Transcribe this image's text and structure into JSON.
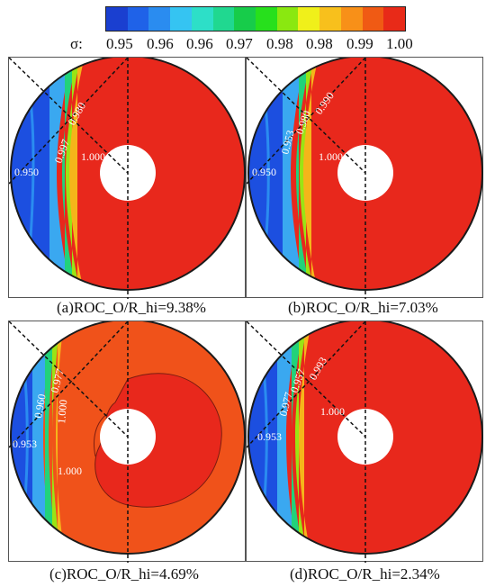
{
  "colorbar": {
    "colors": [
      "#1a3fd0",
      "#1f62e8",
      "#2a8cf0",
      "#35c4f2",
      "#2ddfc8",
      "#20d890",
      "#17cc4a",
      "#27e01c",
      "#8ae810",
      "#f0f01a",
      "#f8c01c",
      "#f89018",
      "#f05a14",
      "#e82a18"
    ]
  },
  "legend": {
    "symbol": "σ:",
    "ticks": [
      "0.95",
      "0.96",
      "0.96",
      "0.97",
      "0.98",
      "0.98",
      "0.99",
      "1.00"
    ]
  },
  "panels": [
    {
      "caption": "(a)ROC_O/R_hi=9.38%",
      "theme": "red",
      "labels": [
        "0.950",
        "0.997",
        "0.980",
        "1.000"
      ]
    },
    {
      "caption": "(b)ROC_O/R_hi=7.03%",
      "theme": "red",
      "labels": [
        "0.950",
        "0.953",
        "0.980",
        "0.990",
        "1.000"
      ]
    },
    {
      "caption": "(c)ROC_O/R_hi=4.69%",
      "theme": "orange",
      "labels": [
        "0.953",
        "0.960",
        "0.977",
        "1.000",
        "1.000"
      ]
    },
    {
      "caption": "(d)ROC_O/R_hi=2.34%",
      "theme": "red",
      "labels": [
        "0.953",
        "0.977",
        "0.957",
        "0.993",
        "1.000"
      ]
    }
  ]
}
